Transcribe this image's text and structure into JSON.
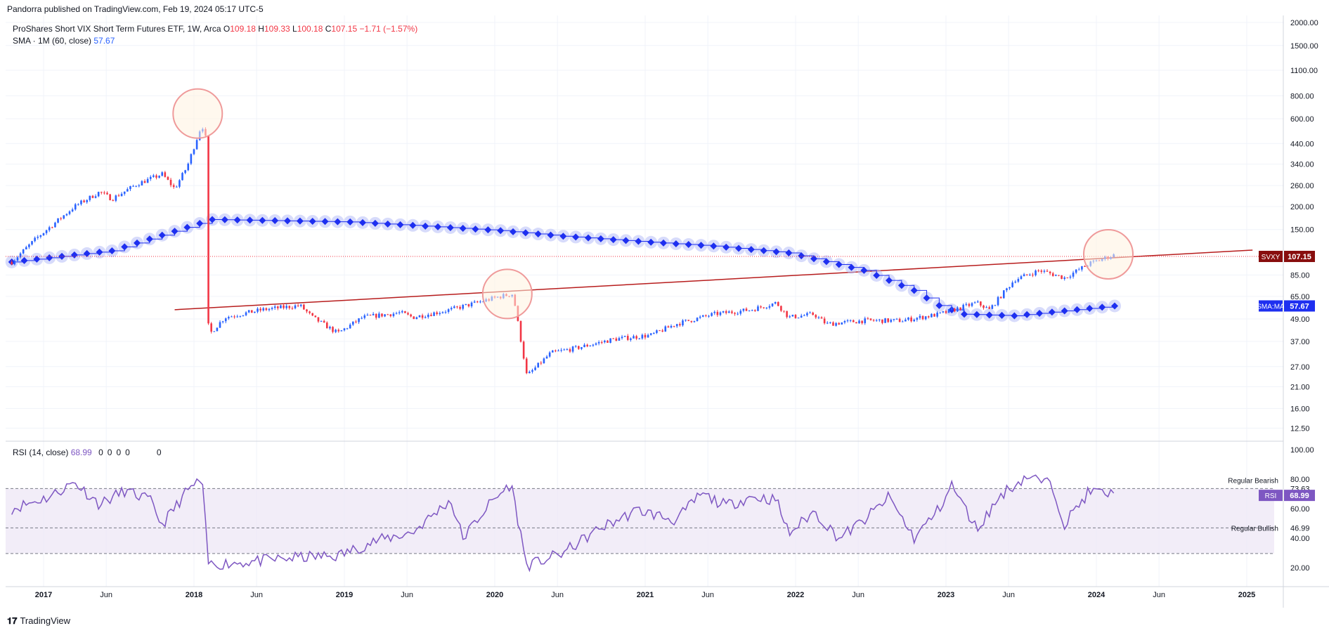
{
  "header": {
    "published": "Pandorra published on TradingView.com, Feb 19, 2024 05:17 UTC-5"
  },
  "legend": {
    "title": "ProShares Short VIX Short Term Futures ETF, 1W, Arca",
    "open_key": "O",
    "open": "109.18",
    "high_key": "H",
    "high": "109.33",
    "low_key": "L",
    "low": "100.18",
    "close_key": "C",
    "close": "107.15",
    "change": "−1.71 (−1.57%)",
    "sma_label": "SMA · 1M (60, close)",
    "sma_value": "57.67",
    "rsi_label": "RSI (14, close)",
    "rsi_value": "68.99",
    "rsi_zeros": [
      "0",
      "0",
      "0",
      "0",
      "0"
    ]
  },
  "footer": {
    "brand": "TradingView"
  },
  "colors": {
    "up": "#2962ff",
    "down": "#f23645",
    "sma": "#1e2ff0",
    "sma_glow": "#b7bdf8",
    "trend": "#b71c1c",
    "rsi": "#7e57c2",
    "rsi_band": "#ede7f6",
    "last_badge": "#880e0e"
  },
  "chart_data": [
    {
      "type": "candlestick",
      "symbol": "SVXY",
      "y_scale": "log",
      "price_ticks": [
        "2000.00",
        "1500.00",
        "1100.00",
        "800.00",
        "600.00",
        "440.00",
        "340.00",
        "260.00",
        "200.00",
        "150.00",
        "85.00",
        "65.00",
        "49.00",
        "37.00",
        "27.00",
        "21.00",
        "16.00",
        "12.50"
      ],
      "x_ticks": [
        "2017",
        "Jun",
        "2018",
        "Jun",
        "2019",
        "Jun",
        "2020",
        "Jun",
        "2021",
        "Jun",
        "2022",
        "Jun",
        "2023",
        "Jun",
        "2024",
        "Jun",
        "2025"
      ],
      "last_price_label": "SVXY",
      "last_price": "107.15",
      "sma_label": "SMA:MA",
      "sma_last": "57.67",
      "price_path": [
        [
          "2016-10",
          100
        ],
        [
          "2016-12",
          135
        ],
        [
          "2017-03",
          200
        ],
        [
          "2017-05",
          240
        ],
        [
          "2017-06",
          220
        ],
        [
          "2017-08",
          265
        ],
        [
          "2017-10",
          300
        ],
        [
          "2017-11",
          250
        ],
        [
          "2017-12",
          330
        ],
        [
          "2018-01",
          520
        ],
        [
          "2018-01-20",
          560
        ],
        [
          "2018-01-29",
          480
        ],
        [
          "2018-02-06",
          40
        ],
        [
          "2018-03",
          50
        ],
        [
          "2018-06",
          55
        ],
        [
          "2018-09",
          58
        ],
        [
          "2018-10",
          50
        ],
        [
          "2018-12",
          41
        ],
        [
          "2019-02",
          50
        ],
        [
          "2019-05",
          53
        ],
        [
          "2019-06",
          50
        ],
        [
          "2019-09",
          55
        ],
        [
          "2020-01",
          65
        ],
        [
          "2020-02-15",
          67
        ],
        [
          "2020-02-28",
          45
        ],
        [
          "2020-03-18",
          24
        ],
        [
          "2020-05",
          32
        ],
        [
          "2020-07",
          34
        ],
        [
          "2020-10",
          38
        ],
        [
          "2021-01",
          40
        ],
        [
          "2021-03",
          46
        ],
        [
          "2021-06",
          52
        ],
        [
          "2021-09",
          55
        ],
        [
          "2021-11",
          60
        ],
        [
          "2021-12",
          50
        ],
        [
          "2022-02",
          52
        ],
        [
          "2022-03",
          46
        ],
        [
          "2022-06",
          48
        ],
        [
          "2022-09",
          48
        ],
        [
          "2022-12",
          52
        ],
        [
          "2023-03",
          60
        ],
        [
          "2023-04",
          55
        ],
        [
          "2023-06",
          80
        ],
        [
          "2023-08",
          90
        ],
        [
          "2023-10",
          82
        ],
        [
          "2023-12",
          98
        ],
        [
          "2024-02-12",
          109
        ],
        [
          "2024-02-19",
          107.15
        ]
      ],
      "sma_path": [
        [
          "2016-10",
          100
        ],
        [
          "2017-06",
          115
        ],
        [
          "2018-02",
          170
        ],
        [
          "2019-01",
          165
        ],
        [
          "2019-06",
          158
        ],
        [
          "2020-01",
          148
        ],
        [
          "2020-06",
          138
        ],
        [
          "2021-01",
          128
        ],
        [
          "2021-06",
          122
        ],
        [
          "2021-12",
          112
        ],
        [
          "2022-06",
          90
        ],
        [
          "2022-10",
          70
        ],
        [
          "2022-12",
          58
        ],
        [
          "2023-02",
          52
        ],
        [
          "2023-06",
          51
        ],
        [
          "2024-02",
          57.67
        ]
      ],
      "trendline": [
        [
          "2017-11",
          55
        ],
        [
          "2025-01",
          116
        ]
      ],
      "highlight_circles": [
        [
          "2018-01-10",
          640
        ],
        [
          "2020-02-01",
          67
        ],
        [
          "2024-01-30",
          110
        ]
      ]
    },
    {
      "type": "line",
      "name": "RSI",
      "y_ticks": [
        "100.00",
        "80.00",
        "73.63",
        "68.99",
        "60.00",
        "46.99",
        "40.00",
        "20.00"
      ],
      "levels": [
        73.63,
        46.99,
        29.6
      ],
      "upper_label": "Regular Bearish",
      "lower_label": "Regular Bullish",
      "last_label": "RSI",
      "last_value": "68.99",
      "path": [
        [
          "2016-10",
          60
        ],
        [
          "2017-01",
          68
        ],
        [
          "2017-03",
          78
        ],
        [
          "2017-05",
          63
        ],
        [
          "2017-07",
          72
        ],
        [
          "2017-09",
          66
        ],
        [
          "2017-10",
          49
        ],
        [
          "2017-12",
          72
        ],
        [
          "2018-01-20",
          80
        ],
        [
          "2018-02-06",
          22
        ],
        [
          "2018-05",
          24
        ],
        [
          "2018-09",
          27
        ],
        [
          "2018-12",
          28
        ],
        [
          "2019-03",
          38
        ],
        [
          "2019-06",
          44
        ],
        [
          "2019-09",
          66
        ],
        [
          "2019-10",
          40
        ],
        [
          "2019-12",
          62
        ],
        [
          "2020-02-10",
          77
        ],
        [
          "2020-03-18",
          21
        ],
        [
          "2020-06",
          30
        ],
        [
          "2020-09",
          47
        ],
        [
          "2020-12",
          59
        ],
        [
          "2021-03",
          52
        ],
        [
          "2021-05",
          70
        ],
        [
          "2021-07",
          62
        ],
        [
          "2021-09",
          68
        ],
        [
          "2021-11",
          66
        ],
        [
          "2021-12",
          43
        ],
        [
          "2022-02",
          58
        ],
        [
          "2022-04",
          40
        ],
        [
          "2022-06",
          52
        ],
        [
          "2022-08",
          68
        ],
        [
          "2022-10",
          40
        ],
        [
          "2022-12",
          60
        ],
        [
          "2023-01",
          76
        ],
        [
          "2023-03",
          46
        ],
        [
          "2023-05",
          70
        ],
        [
          "2023-07",
          82
        ],
        [
          "2023-09",
          76
        ],
        [
          "2023-10",
          50
        ],
        [
          "2023-12",
          72
        ],
        [
          "2024-02-19",
          68.99
        ]
      ]
    }
  ]
}
